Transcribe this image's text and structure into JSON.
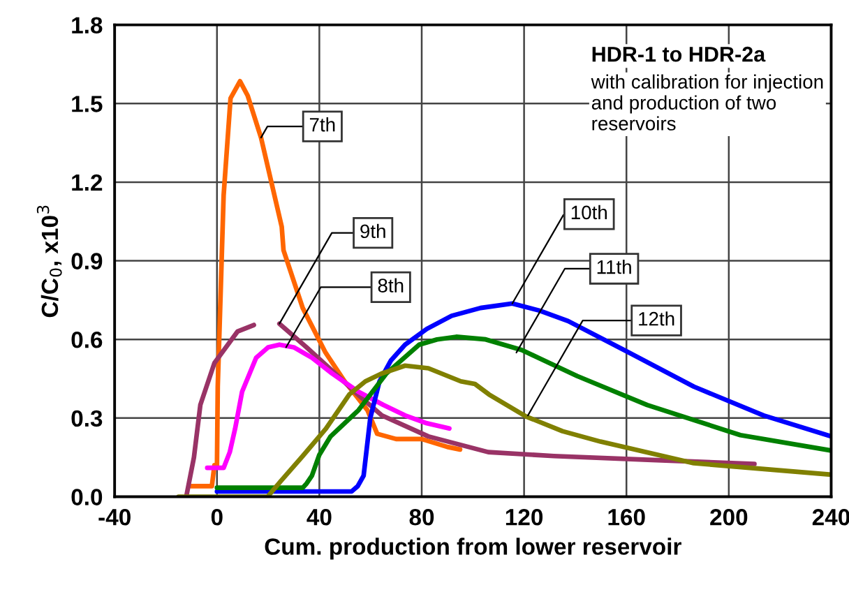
{
  "chart_data": {
    "type": "line",
    "xlabel": "Cum. production from lower reservoir",
    "ylabel": "C/C$_{0}$, x10$^{3}$",
    "xlim": [
      -40,
      240
    ],
    "xticks": [
      -40,
      0,
      40,
      80,
      120,
      160,
      200,
      240
    ],
    "ylim": [
      0,
      1.8
    ],
    "yticks": [
      {
        "value": 0,
        "label": "0.0"
      },
      0.3,
      0.6,
      0.9,
      1.2,
      1.5,
      1.8
    ],
    "grid": true,
    "legend": false,
    "marker": "none",
    "line_style": "solid",
    "series": [
      {
        "color": "#ff6600",
        "x": [
          -10,
          -2,
          -1,
          0,
          0.3,
          1.5,
          2.6,
          5.3,
          9,
          12,
          17.2,
          25.3,
          26,
          33.5,
          42.4,
          49.9,
          58.8,
          62.6,
          70,
          80,
          90,
          95
        ],
        "values": [
          0.04,
          0.04,
          0.12,
          0.12,
          0.42,
          0.8,
          1.15,
          1.52,
          1.585,
          1.53,
          1.37,
          1.03,
          0.94,
          0.72,
          0.55,
          0.44,
          0.33,
          0.24,
          0.22,
          0.22,
          0.19,
          0.18
        ]
      },
      {
        "color": "#993366",
        "x": [
          -12,
          -9,
          -6.5,
          -1,
          8,
          14.4,
          19,
          24.4,
          35,
          46.2,
          55,
          64.4,
          82.6,
          106,
          131.7,
          170,
          210
        ],
        "values": [
          0,
          0.15,
          0.35,
          0.51,
          0.63,
          0.655,
          null,
          0.66,
          0.57,
          0.47,
          0.39,
          0.31,
          0.23,
          0.17,
          0.155,
          0.14,
          0.125
        ]
      },
      {
        "color": "#ff00ff",
        "x": [
          -3.8,
          2.6,
          5,
          7.1,
          9.8,
          15.3,
          20,
          24.4,
          30,
          37.1,
          45,
          55.3,
          65,
          73.5,
          82,
          90.8
        ],
        "values": [
          0.11,
          0.11,
          0.17,
          0.26,
          0.4,
          0.53,
          0.57,
          0.58,
          0.57,
          0.53,
          0.47,
          0.4,
          0.35,
          0.31,
          0.28,
          0.26
        ]
      },
      {
        "color": "#0000ff",
        "x": [
          0,
          52.6,
          55,
          57.3,
          59.9,
          63.5,
          68,
          73.5,
          82,
          91.7,
          103,
          115.4,
          126,
          137.2,
          159,
          186.3,
          213.6,
          240
        ],
        "values": [
          0.02,
          0.02,
          0.04,
          0.08,
          0.3,
          0.44,
          0.52,
          0.58,
          0.64,
          0.69,
          0.72,
          0.737,
          0.71,
          0.67,
          0.56,
          0.42,
          0.31,
          0.23
        ]
      },
      {
        "color": "#008000",
        "x": [
          0,
          33.5,
          35,
          37.1,
          40,
          44.4,
          55.3,
          66.2,
          79,
          86,
          93.5,
          105,
          119,
          140.8,
          168.1,
          204.5,
          240
        ],
        "values": [
          0.034,
          0.034,
          0.05,
          0.08,
          0.16,
          0.23,
          0.33,
          0.47,
          0.58,
          0.6,
          0.61,
          0.6,
          0.56,
          0.46,
          0.35,
          0.235,
          0.176
        ]
      },
      {
        "color": "#808000",
        "x": [
          -15,
          19.8,
          25,
          33.5,
          42.6,
          51.7,
          58,
          64.4,
          73.5,
          82.6,
          95.3,
          100.8,
          106.3,
          120.8,
          135,
          149.9,
          186.3,
          240
        ],
        "values": [
          0,
          0,
          0.06,
          0.155,
          0.26,
          0.39,
          0.44,
          0.47,
          0.5,
          0.49,
          0.44,
          0.43,
          0.39,
          0.306,
          0.25,
          0.21,
          0.128,
          0.084
        ]
      }
    ],
    "annotations": [
      {
        "text": "7th",
        "x": 17.2,
        "y": 1.37
      },
      {
        "text": "9th",
        "x": 24.4,
        "y": 0.66
      },
      {
        "text": "8th",
        "x": 27,
        "y": 0.57
      },
      {
        "text": "10th",
        "x": 115.4,
        "y": 0.737
      },
      {
        "text": "11th",
        "x": 117,
        "y": 0.55
      },
      {
        "text": "12th",
        "x": 121.5,
        "y": 0.31
      },
      "HDR-1 to HDR-2a",
      "with calibration for injection\nand production of two\nreservoirs"
    ]
  }
}
